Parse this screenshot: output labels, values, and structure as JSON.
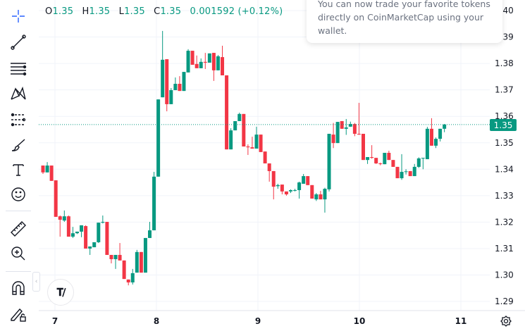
{
  "legend": {
    "open_label": "O",
    "open": "1.35",
    "high_label": "H",
    "high": "1.35",
    "low_label": "L",
    "low": "1.35",
    "close_label": "C",
    "close": "1.35",
    "change": "0.001592 (+0.12%)"
  },
  "tooltip": {
    "lines": [
      "You can now trade your favorite tokens",
      "directly on CoinMarketCap using your",
      "wallet."
    ]
  },
  "last_price_label": "1.35",
  "logo_text": "TV",
  "toolbar": {
    "icons": [
      "crosshair-icon",
      "trend-line-icon",
      "horizontal-lines-icon",
      "pattern-icon",
      "forecast-icon",
      "brush-icon",
      "text-icon",
      "emoji-icon",
      "ruler-icon",
      "zoom-in-icon",
      "magnet-icon",
      "lock-drawings-icon"
    ]
  },
  "colors": {
    "up": "#089981",
    "down": "#f23645",
    "grid": "#f0f3fa",
    "text": "#131722"
  },
  "chart_data": {
    "type": "candlestick",
    "title": "",
    "xlabel": "",
    "ylabel": "",
    "x_ticks": [
      "7",
      "8",
      "9",
      "10",
      "11"
    ],
    "y_ticks": [
      "1.29",
      "1.30",
      "1.31",
      "1.32",
      "1.33",
      "1.34",
      "1.35",
      "1.36",
      "1.37",
      "1.38",
      "1.39",
      "1.40"
    ],
    "ylim": [
      1.2855,
      1.404
    ],
    "grid": true,
    "last_price": 1.3569,
    "candles_ohlc": [
      [
        1.3414,
        1.3414,
        1.3382,
        1.3388
      ],
      [
        1.3388,
        1.3427,
        1.3388,
        1.3414
      ],
      [
        1.3414,
        1.3414,
        1.3356,
        1.3356
      ],
      [
        1.3358,
        1.3358,
        1.322,
        1.322
      ],
      [
        1.3222,
        1.3225,
        1.3145,
        1.3209
      ],
      [
        1.3206,
        1.3244,
        1.3201,
        1.3222
      ],
      [
        1.3222,
        1.3225,
        1.3145,
        1.3145
      ],
      [
        1.3145,
        1.3182,
        1.314,
        1.3158
      ],
      [
        1.3158,
        1.3164,
        1.3155,
        1.3164
      ],
      [
        1.3164,
        1.3188,
        1.3143,
        1.3188
      ],
      [
        1.3185,
        1.3188,
        1.31,
        1.31
      ],
      [
        1.31,
        1.3108,
        1.3076,
        1.3108
      ],
      [
        1.3105,
        1.3124,
        1.3105,
        1.3124
      ],
      [
        1.3124,
        1.3198,
        1.3121,
        1.3198
      ],
      [
        1.3198,
        1.3225,
        1.3195,
        1.3201
      ],
      [
        1.3201,
        1.3201,
        1.3076,
        1.3076
      ],
      [
        1.3076,
        1.3076,
        1.3044,
        1.306
      ],
      [
        1.306,
        1.3076,
        1.3023,
        1.3076
      ],
      [
        1.3076,
        1.3121,
        1.3055,
        1.3055
      ],
      [
        1.3055,
        1.3055,
        1.2985,
        1.2985
      ],
      [
        1.2983,
        1.2983,
        1.2961,
        1.2972
      ],
      [
        1.2972,
        1.3023,
        1.2964,
        1.3007
      ],
      [
        1.3009,
        1.3095,
        1.3009,
        1.3087
      ],
      [
        1.3087,
        1.3087,
        1.3009,
        1.3009
      ],
      [
        1.3009,
        1.314,
        1.3009,
        1.314
      ],
      [
        1.314,
        1.3201,
        1.314,
        1.3169
      ],
      [
        1.3169,
        1.339,
        1.3169,
        1.3372
      ],
      [
        1.3372,
        1.3664,
        1.3372,
        1.3664
      ],
      [
        1.3672,
        1.3923,
        1.3672,
        1.3814
      ],
      [
        1.3816,
        1.3816,
        1.3619,
        1.3646
      ],
      [
        1.3646,
        1.3707,
        1.3646,
        1.3699
      ],
      [
        1.3699,
        1.3747,
        1.3699,
        1.3723
      ],
      [
        1.3723,
        1.3752,
        1.3696,
        1.3696
      ],
      [
        1.3696,
        1.3768,
        1.3696,
        1.3768
      ],
      [
        1.3766,
        1.3854,
        1.3766,
        1.3848
      ],
      [
        1.3848,
        1.3848,
        1.3795,
        1.3795
      ],
      [
        1.3798,
        1.383,
        1.3782,
        1.3782
      ],
      [
        1.3782,
        1.3819,
        1.3782,
        1.3806
      ],
      [
        1.3806,
        1.384,
        1.3779,
        1.3803
      ],
      [
        1.3803,
        1.3838,
        1.3803,
        1.3838
      ],
      [
        1.384,
        1.384,
        1.3734,
        1.3774
      ],
      [
        1.3774,
        1.3832,
        1.3774,
        1.3827
      ],
      [
        1.3824,
        1.3867,
        1.3755,
        1.3755
      ],
      [
        1.3755,
        1.3755,
        1.3475,
        1.3475
      ],
      [
        1.3475,
        1.3555,
        1.3475,
        1.3547
      ],
      [
        1.3547,
        1.3582,
        1.3547,
        1.3582
      ],
      [
        1.3582,
        1.3614,
        1.3582,
        1.3609
      ],
      [
        1.3609,
        1.3609,
        1.3486,
        1.3486
      ],
      [
        1.3486,
        1.3494,
        1.3454,
        1.3483
      ],
      [
        1.3483,
        1.3523,
        1.3478,
        1.3478
      ],
      [
        1.3478,
        1.3561,
        1.3478,
        1.3531
      ],
      [
        1.3531,
        1.3531,
        1.3465,
        1.3465
      ],
      [
        1.3467,
        1.3467,
        1.3422,
        1.3422
      ],
      [
        1.3422,
        1.3422,
        1.3353,
        1.3393
      ],
      [
        1.3393,
        1.3393,
        1.3286,
        1.3334
      ],
      [
        1.3336,
        1.3345,
        1.3326,
        1.334
      ],
      [
        1.3342,
        1.3342,
        1.3305,
        1.3316
      ],
      [
        1.3316,
        1.3316,
        1.33,
        1.3305
      ],
      [
        1.3316,
        1.3324,
        1.331,
        1.3321
      ],
      [
        1.3321,
        1.3326,
        1.3316,
        1.3321
      ],
      [
        1.3321,
        1.3353,
        1.3289,
        1.335
      ],
      [
        1.3345,
        1.3382,
        1.3345,
        1.3374
      ],
      [
        1.3374,
        1.3374,
        1.334,
        1.334
      ],
      [
        1.334,
        1.334,
        1.3289,
        1.3289
      ],
      [
        1.3286,
        1.331,
        1.328,
        1.3305
      ],
      [
        1.3305,
        1.3318,
        1.3286,
        1.3286
      ],
      [
        1.3286,
        1.333,
        1.3236,
        1.3326
      ],
      [
        1.3324,
        1.3534,
        1.3316,
        1.3534
      ],
      [
        1.3531,
        1.3575,
        1.348,
        1.3499
      ],
      [
        1.3499,
        1.3579,
        1.3499,
        1.3579
      ],
      [
        1.3582,
        1.3582,
        1.3553,
        1.3553
      ],
      [
        1.3553,
        1.359,
        1.353,
        1.3558
      ],
      [
        1.3561,
        1.358,
        1.356,
        1.3571
      ],
      [
        1.3571,
        1.3575,
        1.3525,
        1.3534
      ],
      [
        1.3534,
        1.3651,
        1.353,
        1.3532
      ],
      [
        1.3534,
        1.3534,
        1.3435,
        1.3435
      ],
      [
        1.3435,
        1.3446,
        1.342,
        1.3446
      ],
      [
        1.3446,
        1.3491,
        1.344,
        1.3443
      ],
      [
        1.3443,
        1.3443,
        1.342,
        1.3422
      ],
      [
        1.3422,
        1.3425,
        1.3415,
        1.342
      ],
      [
        1.3419,
        1.3462,
        1.3419,
        1.3462
      ],
      [
        1.3462,
        1.347,
        1.3435,
        1.3435
      ],
      [
        1.3435,
        1.3435,
        1.3409,
        1.3409
      ],
      [
        1.3409,
        1.3409,
        1.3366,
        1.3366
      ],
      [
        1.3366,
        1.3457,
        1.336,
        1.339
      ],
      [
        1.339,
        1.34,
        1.338,
        1.3392
      ],
      [
        1.3393,
        1.3393,
        1.3374,
        1.3374
      ],
      [
        1.3374,
        1.342,
        1.3374,
        1.3409
      ],
      [
        1.3409,
        1.3445,
        1.3405,
        1.3441
      ],
      [
        1.3441,
        1.3443,
        1.34,
        1.3443
      ],
      [
        1.3438,
        1.356,
        1.3438,
        1.3553
      ],
      [
        1.3553,
        1.3593,
        1.3489,
        1.3489
      ],
      [
        1.3489,
        1.352,
        1.348,
        1.3515
      ],
      [
        1.3515,
        1.3553,
        1.3505,
        1.3553
      ],
      [
        1.3553,
        1.3571,
        1.354,
        1.3569
      ]
    ]
  }
}
